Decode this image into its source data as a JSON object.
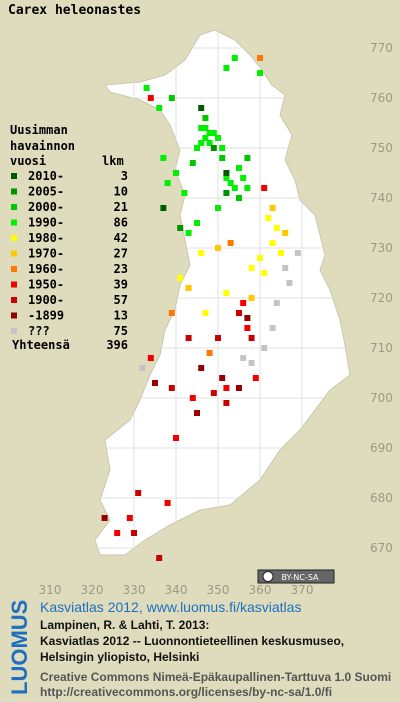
{
  "title": "Carex heleonastes",
  "legend": {
    "heading": [
      "Uusimman",
      "havainnon",
      "vuosi"
    ],
    "count_heading": "lkm",
    "rows": [
      {
        "label": "2010-",
        "count": 3,
        "color": "#005a00"
      },
      {
        "label": "2005-",
        "count": 10,
        "color": "#009000"
      },
      {
        "label": "2000-",
        "count": 21,
        "color": "#00c800"
      },
      {
        "label": "1990-",
        "count": 86,
        "color": "#00f000"
      },
      {
        "label": "1980-",
        "count": 42,
        "color": "#ffff00"
      },
      {
        "label": "1970-",
        "count": 27,
        "color": "#ffc800"
      },
      {
        "label": "1960-",
        "count": 23,
        "color": "#ff7800"
      },
      {
        "label": "1950-",
        "count": 39,
        "color": "#f00000"
      },
      {
        "label": "1900-",
        "count": 57,
        "color": "#c80000"
      },
      {
        "label": "-1899",
        "count": 13,
        "color": "#960000"
      },
      {
        "label": "???",
        "count": 75,
        "color": "#c4c4c4"
      }
    ],
    "total_label": "Yhteensä",
    "total": 396
  },
  "map": {
    "xticks": [
      310,
      320,
      330,
      340,
      350,
      360,
      370
    ],
    "yticks": [
      670,
      680,
      690,
      700,
      710,
      720,
      730,
      740,
      750,
      760,
      770
    ],
    "records": [
      [
        346,
        754,
        3
      ],
      [
        347,
        754,
        3
      ],
      [
        348,
        753,
        3
      ],
      [
        349,
        753,
        3
      ],
      [
        347,
        752,
        3
      ],
      [
        348,
        751,
        3
      ],
      [
        346,
        751,
        3
      ],
      [
        350,
        752,
        3
      ],
      [
        345,
        750,
        3
      ],
      [
        351,
        750,
        3
      ],
      [
        352,
        744,
        3
      ],
      [
        353,
        743,
        3
      ],
      [
        355,
        746,
        3
      ],
      [
        356,
        744,
        3
      ],
      [
        354,
        742,
        3
      ],
      [
        357,
        742,
        3
      ],
      [
        336,
        758,
        3
      ],
      [
        333,
        762,
        3
      ],
      [
        340,
        745,
        3
      ],
      [
        338,
        743,
        3
      ],
      [
        342,
        741,
        3
      ],
      [
        345,
        735,
        3
      ],
      [
        343,
        733,
        3
      ],
      [
        350,
        738,
        3
      ],
      [
        337,
        748,
        3
      ],
      [
        354,
        768,
        3
      ],
      [
        352,
        766,
        3
      ],
      [
        360,
        765,
        3
      ],
      [
        347,
        756,
        2
      ],
      [
        344,
        747,
        2
      ],
      [
        351,
        748,
        2
      ],
      [
        355,
        740,
        2
      ],
      [
        339,
        760,
        2
      ],
      [
        357,
        748,
        2
      ],
      [
        349,
        750,
        1
      ],
      [
        352,
        741,
        1
      ],
      [
        341,
        734,
        1
      ],
      [
        352,
        745,
        0
      ],
      [
        346,
        758,
        0
      ],
      [
        337,
        738,
        0
      ],
      [
        362,
        736,
        4
      ],
      [
        364,
        734,
        4
      ],
      [
        363,
        731,
        4
      ],
      [
        360,
        728,
        4
      ],
      [
        365,
        729,
        4
      ],
      [
        361,
        725,
        4
      ],
      [
        358,
        726,
        4
      ],
      [
        352,
        721,
        4
      ],
      [
        347,
        717,
        4
      ],
      [
        341,
        724,
        4
      ],
      [
        346,
        729,
        4
      ],
      [
        363,
        738,
        5
      ],
      [
        366,
        733,
        5
      ],
      [
        358,
        720,
        5
      ],
      [
        350,
        730,
        5
      ],
      [
        343,
        722,
        5
      ],
      [
        360,
        768,
        6
      ],
      [
        353,
        731,
        6
      ],
      [
        348,
        709,
        6
      ],
      [
        339,
        717,
        6
      ],
      [
        361,
        742,
        7
      ],
      [
        356,
        719,
        7
      ],
      [
        357,
        714,
        7
      ],
      [
        352,
        702,
        7
      ],
      [
        359,
        704,
        7
      ],
      [
        344,
        700,
        7
      ],
      [
        338,
        679,
        7
      ],
      [
        326,
        673,
        7
      ],
      [
        329,
        676,
        7
      ],
      [
        340,
        692,
        7
      ],
      [
        334,
        708,
        7
      ],
      [
        334,
        760,
        7
      ],
      [
        355,
        717,
        8
      ],
      [
        358,
        712,
        8
      ],
      [
        349,
        701,
        8
      ],
      [
        352,
        699,
        8
      ],
      [
        343,
        712,
        8
      ],
      [
        331,
        681,
        8
      ],
      [
        330,
        673,
        8
      ],
      [
        336,
        668,
        8
      ],
      [
        339,
        702,
        8
      ],
      [
        350,
        712,
        8
      ],
      [
        357,
        716,
        9
      ],
      [
        351,
        704,
        9
      ],
      [
        355,
        702,
        9
      ],
      [
        345,
        697,
        9
      ],
      [
        335,
        703,
        9
      ],
      [
        323,
        676,
        9
      ],
      [
        346,
        706,
        9
      ],
      [
        366,
        726,
        10
      ],
      [
        367,
        723,
        10
      ],
      [
        369,
        729,
        10
      ],
      [
        364,
        719,
        10
      ],
      [
        361,
        710,
        10
      ],
      [
        356,
        708,
        10
      ],
      [
        363,
        714,
        10
      ],
      [
        332,
        706,
        10
      ],
      [
        358,
        707,
        10
      ]
    ]
  },
  "badge": "BY-NC-SA",
  "credits": {
    "logo": "LUOMUS",
    "link": "Kasviatlas 2012, www.luomus.fi/kasviatlas",
    "lines": [
      "Lampinen, R. & Lahti, T. 2013:",
      "Kasviatlas 2012 -- Luonnontieteellinen keskusmuseo,",
      "Helsingin yliopisto, Helsinki"
    ],
    "license": "Creative Commons Nimeä-Epäkaupallinen-Tarttuva 1.0 Suomi",
    "url": "http://creativecommons.org/licenses/by-nc-sa/1.0/fi"
  }
}
